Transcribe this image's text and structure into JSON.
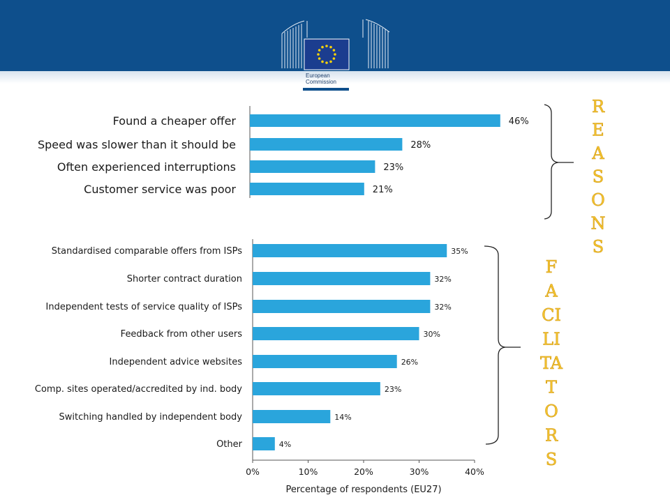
{
  "header": {
    "logo_line1": "European",
    "logo_line2": "Commission"
  },
  "side_labels": {
    "reasons": [
      "R",
      "E",
      "A",
      "S",
      "O",
      "N",
      "S"
    ],
    "facilitators": [
      "F",
      "A",
      "CI",
      "LI",
      "TA",
      "T",
      "O",
      "R",
      "S"
    ]
  },
  "colors": {
    "bar": "#2aa5dc",
    "header": "#0e4f8c",
    "side_label": "#f4c430"
  },
  "chart_data": [
    {
      "type": "bar",
      "orientation": "horizontal",
      "categories": [
        "Found a cheaper offer",
        "Speed was slower than it should be",
        "Often experienced interruptions",
        "Customer service was poor"
      ],
      "values": [
        46,
        28,
        23,
        21
      ],
      "value_labels": [
        "46%",
        "28%",
        "23%",
        "21%"
      ],
      "value_unit": "%"
    },
    {
      "type": "bar",
      "orientation": "horizontal",
      "categories": [
        "Standardised comparable offers from ISPs",
        "Shorter contract duration",
        "Independent tests of service quality of ISPs",
        "Feedback from other users",
        "Independent advice websites",
        "Comp. sites operated/accredited by ind. body",
        "Switching handled by independent body",
        "Other"
      ],
      "values": [
        35,
        32,
        32,
        30,
        26,
        23,
        14,
        4
      ],
      "value_labels": [
        "35%",
        "32%",
        "32%",
        "30%",
        "26%",
        "23%",
        "14%",
        "4%"
      ],
      "xlim": [
        0,
        40
      ],
      "xticks": [
        "0%",
        "10%",
        "20%",
        "30%",
        "40%"
      ],
      "xlabel": "Percentage of respondents (EU27)"
    }
  ]
}
